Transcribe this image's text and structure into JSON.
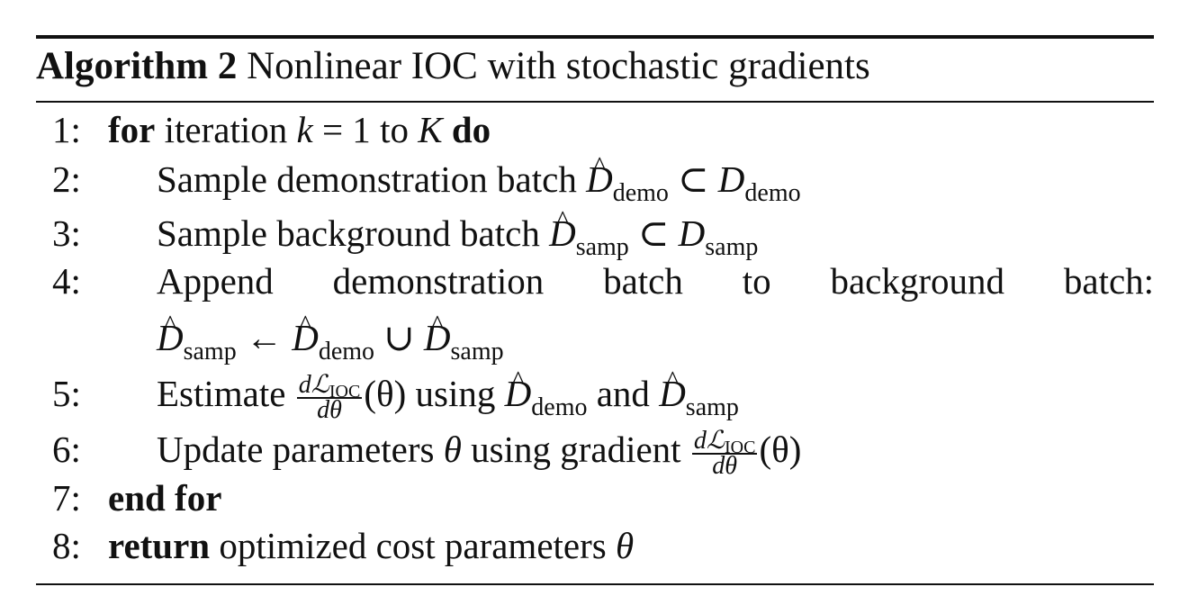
{
  "caption": {
    "label": "Algorithm 2",
    "title": "Nonlinear IOC with stochastic gradients"
  },
  "lines": {
    "l1": {
      "num": "1:",
      "kw_for": "for",
      "text_a": "iteration",
      "var_k": "k",
      "eq": "= 1",
      "text_to": "to",
      "var_K": "K",
      "kw_do": "do"
    },
    "l2": {
      "num": "2:",
      "text": "Sample demonstration batch",
      "set": "D",
      "hat": "^",
      "sub": "demo",
      "op": "⊂",
      "set2": "D",
      "sub2": "demo"
    },
    "l3": {
      "num": "3:",
      "text": "Sample background batch",
      "set": "D",
      "hat": "^",
      "sub": "samp",
      "op": "⊂",
      "set2": "D",
      "sub2": "samp"
    },
    "l4": {
      "num": "4:",
      "words": [
        "Append",
        "demonstration",
        "batch",
        "to",
        "background",
        "batch:"
      ],
      "lhs": "D",
      "lhs_sub": "samp",
      "arrow": "←",
      "a": "D",
      "a_sub": "demo",
      "union": "∪",
      "b": "D",
      "b_sub": "samp",
      "hat": "^"
    },
    "l5": {
      "num": "5:",
      "text": "Estimate",
      "frac_num": "dℒ",
      "frac_num_sub": "IOC",
      "frac_den": "dθ",
      "arg": "(θ)",
      "text_using": "using",
      "a": "D",
      "a_sub": "demo",
      "text_and": "and",
      "b": "D",
      "b_sub": "samp",
      "hat": "^"
    },
    "l6": {
      "num": "6:",
      "text_a": "Update parameters",
      "var": "θ",
      "text_b": "using gradient",
      "frac_num": "dℒ",
      "frac_num_sub": "IOC",
      "frac_den": "dθ",
      "arg": "(θ)"
    },
    "l7": {
      "num": "7:",
      "kw": "end for"
    },
    "l8": {
      "num": "8:",
      "kw": "return",
      "text": "optimized cost parameters",
      "var": "θ"
    }
  }
}
